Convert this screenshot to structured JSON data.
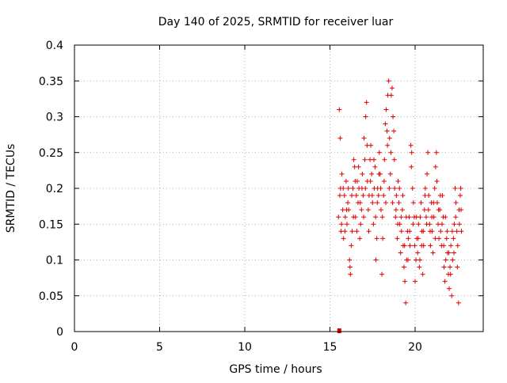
{
  "chart_data": {
    "type": "scatter",
    "title": "Day 140 of 2025, SRMTID for receiver luar",
    "xlabel": "GPS time / hours",
    "ylabel": "SRMTID / TECUs",
    "xlim": [
      0,
      24
    ],
    "ylim": [
      0,
      0.4
    ],
    "x_ticks": [
      0,
      5,
      10,
      15,
      20
    ],
    "x_tick_labels": [
      "0",
      "5",
      "10",
      "15",
      "20"
    ],
    "y_ticks": [
      0,
      0.05,
      0.1,
      0.15,
      0.2,
      0.25,
      0.3,
      0.35,
      0.4
    ],
    "y_tick_labels": [
      "0",
      "0.05",
      "0.1",
      "0.15",
      "0.2",
      "0.25",
      "0.3",
      "0.35",
      "0.4"
    ],
    "grid": true,
    "marker": "+",
    "color": "#e00000",
    "marker_square": {
      "x": 15.55,
      "y": 0.0
    },
    "series": [
      {
        "name": "SRMTID",
        "points": [
          [
            15.5,
            0.16
          ],
          [
            15.55,
            0.31
          ],
          [
            15.6,
            0.27
          ],
          [
            15.62,
            0.2
          ],
          [
            15.65,
            0.14
          ],
          [
            15.7,
            0.22
          ],
          [
            15.75,
            0.17
          ],
          [
            15.8,
            0.13
          ],
          [
            15.85,
            0.19
          ],
          [
            15.9,
            0.16
          ],
          [
            15.95,
            0.21
          ],
          [
            16.0,
            0.15
          ],
          [
            16.05,
            0.18
          ],
          [
            16.1,
            0.17
          ],
          [
            16.15,
            0.1
          ],
          [
            16.2,
            0.08
          ],
          [
            16.25,
            0.12
          ],
          [
            16.3,
            0.14
          ],
          [
            16.35,
            0.2
          ],
          [
            16.4,
            0.24
          ],
          [
            16.45,
            0.23
          ],
          [
            16.5,
            0.16
          ],
          [
            16.55,
            0.19
          ],
          [
            16.6,
            0.21
          ],
          [
            16.65,
            0.18
          ],
          [
            16.7,
            0.2
          ],
          [
            16.75,
            0.13
          ],
          [
            16.8,
            0.15
          ],
          [
            16.85,
            0.17
          ],
          [
            16.9,
            0.22
          ],
          [
            16.95,
            0.19
          ],
          [
            17.0,
            0.27
          ],
          [
            17.05,
            0.24
          ],
          [
            17.1,
            0.3
          ],
          [
            17.15,
            0.32
          ],
          [
            17.2,
            0.21
          ],
          [
            17.25,
            0.17
          ],
          [
            17.3,
            0.19
          ],
          [
            17.35,
            0.24
          ],
          [
            17.4,
            0.26
          ],
          [
            17.45,
            0.22
          ],
          [
            17.5,
            0.18
          ],
          [
            17.55,
            0.15
          ],
          [
            17.6,
            0.2
          ],
          [
            17.65,
            0.23
          ],
          [
            17.7,
            0.1
          ],
          [
            17.75,
            0.13
          ],
          [
            17.8,
            0.2
          ],
          [
            17.85,
            0.19
          ],
          [
            17.9,
            0.25
          ],
          [
            17.95,
            0.22
          ],
          [
            18.0,
            0.17
          ],
          [
            18.05,
            0.08
          ],
          [
            18.1,
            0.13
          ],
          [
            18.15,
            0.19
          ],
          [
            18.2,
            0.24
          ],
          [
            18.25,
            0.29
          ],
          [
            18.3,
            0.31
          ],
          [
            18.35,
            0.28
          ],
          [
            18.4,
            0.33
          ],
          [
            18.45,
            0.35
          ],
          [
            18.5,
            0.27
          ],
          [
            18.55,
            0.22
          ],
          [
            18.6,
            0.33
          ],
          [
            18.65,
            0.34
          ],
          [
            18.7,
            0.3
          ],
          [
            18.75,
            0.28
          ],
          [
            18.8,
            0.2
          ],
          [
            18.85,
            0.16
          ],
          [
            18.9,
            0.19
          ],
          [
            18.95,
            0.13
          ],
          [
            19.0,
            0.21
          ],
          [
            19.05,
            0.18
          ],
          [
            19.1,
            0.15
          ],
          [
            19.15,
            0.11
          ],
          [
            19.2,
            0.14
          ],
          [
            19.25,
            0.17
          ],
          [
            19.3,
            0.12
          ],
          [
            19.35,
            0.09
          ],
          [
            19.4,
            0.07
          ],
          [
            19.45,
            0.04
          ],
          [
            19.5,
            0.1
          ],
          [
            19.55,
            0.14
          ],
          [
            19.6,
            0.13
          ],
          [
            19.65,
            0.16
          ],
          [
            19.7,
            0.12
          ],
          [
            19.75,
            0.26
          ],
          [
            19.8,
            0.25
          ],
          [
            19.85,
            0.2
          ],
          [
            19.9,
            0.18
          ],
          [
            19.95,
            0.16
          ],
          [
            20.0,
            0.07
          ],
          [
            20.05,
            0.1
          ],
          [
            20.1,
            0.13
          ],
          [
            20.15,
            0.11
          ],
          [
            20.2,
            0.15
          ],
          [
            20.25,
            0.09
          ],
          [
            20.3,
            0.16
          ],
          [
            20.35,
            0.18
          ],
          [
            20.4,
            0.14
          ],
          [
            20.45,
            0.08
          ],
          [
            20.5,
            0.12
          ],
          [
            20.55,
            0.17
          ],
          [
            20.6,
            0.2
          ],
          [
            20.65,
            0.16
          ],
          [
            20.7,
            0.22
          ],
          [
            20.75,
            0.25
          ],
          [
            20.8,
            0.19
          ],
          [
            20.85,
            0.15
          ],
          [
            20.9,
            0.12
          ],
          [
            20.95,
            0.18
          ],
          [
            21.0,
            0.14
          ],
          [
            21.05,
            0.11
          ],
          [
            21.1,
            0.16
          ],
          [
            21.15,
            0.2
          ],
          [
            21.2,
            0.23
          ],
          [
            21.25,
            0.25
          ],
          [
            21.3,
            0.18
          ],
          [
            21.35,
            0.15
          ],
          [
            21.4,
            0.13
          ],
          [
            21.45,
            0.17
          ],
          [
            21.5,
            0.14
          ],
          [
            21.55,
            0.12
          ],
          [
            21.6,
            0.19
          ],
          [
            21.65,
            0.16
          ],
          [
            21.7,
            0.09
          ],
          [
            21.75,
            0.07
          ],
          [
            21.8,
            0.1
          ],
          [
            21.85,
            0.13
          ],
          [
            21.9,
            0.11
          ],
          [
            21.95,
            0.08
          ],
          [
            22.0,
            0.06
          ],
          [
            22.05,
            0.09
          ],
          [
            22.1,
            0.12
          ],
          [
            22.15,
            0.05
          ],
          [
            22.2,
            0.1
          ],
          [
            22.25,
            0.13
          ],
          [
            22.3,
            0.15
          ],
          [
            22.35,
            0.2
          ],
          [
            22.4,
            0.18
          ],
          [
            22.45,
            0.14
          ],
          [
            22.5,
            0.12
          ],
          [
            22.55,
            0.04
          ],
          [
            22.6,
            0.15
          ],
          [
            22.65,
            0.19
          ],
          [
            22.7,
            0.17
          ],
          [
            22.72,
            0.14
          ],
          [
            15.58,
            0.19
          ],
          [
            15.68,
            0.15
          ],
          [
            15.78,
            0.2
          ],
          [
            15.88,
            0.14
          ],
          [
            15.98,
            0.17
          ],
          [
            16.08,
            0.2
          ],
          [
            16.18,
            0.09
          ],
          [
            16.28,
            0.19
          ],
          [
            16.38,
            0.16
          ],
          [
            16.48,
            0.21
          ],
          [
            16.58,
            0.14
          ],
          [
            16.68,
            0.23
          ],
          [
            16.78,
            0.18
          ],
          [
            16.88,
            0.2
          ],
          [
            16.98,
            0.16
          ],
          [
            17.08,
            0.2
          ],
          [
            17.18,
            0.26
          ],
          [
            17.28,
            0.14
          ],
          [
            17.38,
            0.21
          ],
          [
            17.48,
            0.19
          ],
          [
            17.58,
            0.24
          ],
          [
            17.68,
            0.16
          ],
          [
            17.78,
            0.18
          ],
          [
            17.88,
            0.22
          ],
          [
            17.98,
            0.2
          ],
          [
            18.08,
            0.16
          ],
          [
            18.18,
            0.21
          ],
          [
            18.28,
            0.18
          ],
          [
            18.38,
            0.26
          ],
          [
            18.48,
            0.2
          ],
          [
            18.58,
            0.25
          ],
          [
            18.68,
            0.18
          ],
          [
            18.78,
            0.24
          ],
          [
            18.88,
            0.17
          ],
          [
            18.98,
            0.15
          ],
          [
            19.08,
            0.2
          ],
          [
            19.18,
            0.16
          ],
          [
            19.28,
            0.19
          ],
          [
            19.38,
            0.12
          ],
          [
            19.48,
            0.16
          ],
          [
            19.58,
            0.1
          ],
          [
            19.68,
            0.14
          ],
          [
            19.78,
            0.23
          ],
          [
            19.88,
            0.15
          ],
          [
            19.98,
            0.12
          ],
          [
            20.08,
            0.16
          ],
          [
            20.18,
            0.13
          ],
          [
            20.28,
            0.1
          ],
          [
            20.38,
            0.12
          ],
          [
            20.48,
            0.14
          ],
          [
            20.58,
            0.19
          ],
          [
            20.68,
            0.15
          ],
          [
            20.78,
            0.17
          ],
          [
            20.88,
            0.14
          ],
          [
            20.98,
            0.16
          ],
          [
            21.08,
            0.18
          ],
          [
            21.18,
            0.13
          ],
          [
            21.28,
            0.21
          ],
          [
            21.38,
            0.17
          ],
          [
            21.48,
            0.19
          ],
          [
            21.58,
            0.15
          ],
          [
            21.68,
            0.12
          ],
          [
            21.78,
            0.16
          ],
          [
            21.88,
            0.14
          ],
          [
            21.98,
            0.11
          ],
          [
            22.08,
            0.08
          ],
          [
            22.18,
            0.14
          ],
          [
            22.28,
            0.11
          ],
          [
            22.38,
            0.16
          ],
          [
            22.48,
            0.09
          ],
          [
            22.58,
            0.17
          ],
          [
            22.68,
            0.2
          ]
        ]
      }
    ]
  }
}
